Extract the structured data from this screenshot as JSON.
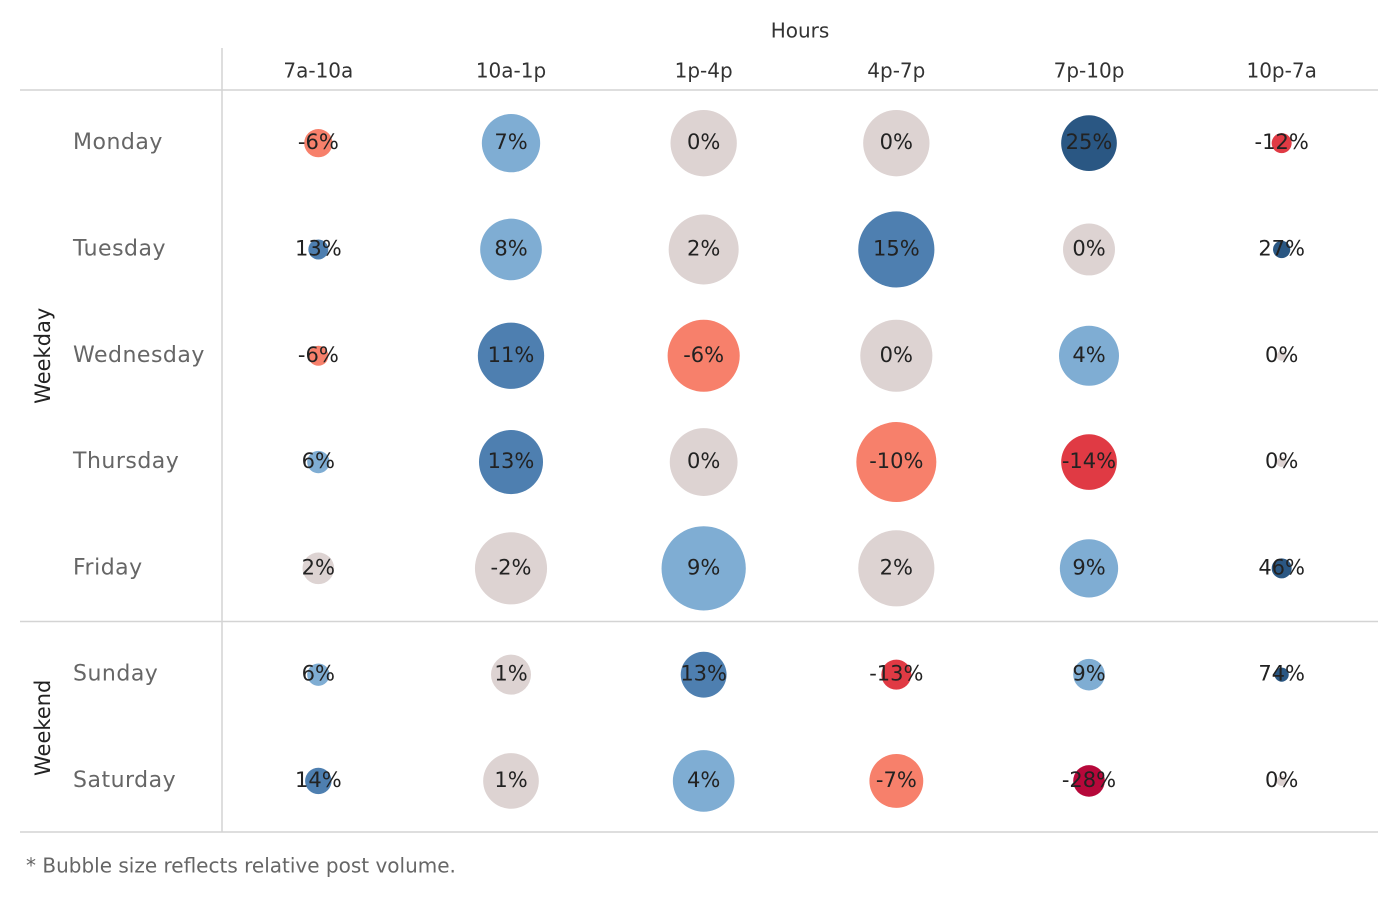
{
  "chart_data": {
    "type": "bubble-grid",
    "x_label": "Hours",
    "categories": [
      "7a-10a",
      "10a-1p",
      "1p-4p",
      "4p-7p",
      "7p-10p",
      "10p-7a"
    ],
    "groups": [
      {
        "name": "Weekday",
        "series": [
          {
            "name": "Monday",
            "values": [
              -6,
              7,
              0,
              0,
              25,
              -12
            ],
            "value_labels": [
              "-6%",
              "7%",
              "0%",
              "0%",
              "25%",
              "-12%"
            ],
            "sizes": [
              8,
              34,
              44,
              44,
              31,
              4
            ],
            "colors": [
              "#f7806b",
              "#7fadd3",
              "#ddd3d2",
              "#ddd3d2",
              "#2a5783",
              "#e03a44"
            ]
          },
          {
            "name": "Tuesday",
            "values": [
              13,
              8,
              2,
              15,
              0,
              27
            ],
            "value_labels": [
              "13%",
              "8%",
              "2%",
              "15%",
              "0%",
              "27%"
            ],
            "sizes": [
              4,
              38,
              49,
              58,
              27,
              3
            ],
            "colors": [
              "#4e7fb0",
              "#7fadd3",
              "#ddd3d2",
              "#4e7fb0",
              "#ddd3d2",
              "#2a5783"
            ]
          },
          {
            "name": "Wednesday",
            "values": [
              -6,
              11,
              -6,
              0,
              4,
              0
            ],
            "value_labels": [
              "-6%",
              "11%",
              "-6%",
              "0%",
              "4%",
              "0%"
            ],
            "sizes": [
              4,
              44,
              52,
              52,
              36,
              1
            ],
            "colors": [
              "#f7806b",
              "#4e7fb0",
              "#f7806b",
              "#ddd3d2",
              "#7fadd3",
              "#ddd3d2"
            ]
          },
          {
            "name": "Thursday",
            "values": [
              6,
              13,
              0,
              -10,
              -14,
              0
            ],
            "value_labels": [
              "6%",
              "13%",
              "0%",
              "-10%",
              "-14%",
              "0%"
            ],
            "sizes": [
              5,
              41,
              46,
              64,
              31,
              1
            ],
            "colors": [
              "#7fadd3",
              "#4e7fb0",
              "#ddd3d2",
              "#f7806b",
              "#e03a44",
              "#ddd3d2"
            ]
          },
          {
            "name": "Friday",
            "values": [
              2,
              -2,
              9,
              2,
              9,
              46
            ],
            "value_labels": [
              "2%",
              "-2%",
              "9%",
              "2%",
              "9%",
              "46%"
            ],
            "sizes": [
              10,
              52,
              71,
              58,
              34,
              4
            ],
            "colors": [
              "#ddd3d2",
              "#ddd3d2",
              "#7fadd3",
              "#ddd3d2",
              "#7fadd3",
              "#2a5783"
            ]
          }
        ]
      },
      {
        "name": "Weekend",
        "series": [
          {
            "name": "Sunday",
            "values": [
              6,
              1,
              13,
              -13,
              9,
              74
            ],
            "value_labels": [
              "6%",
              "1%",
              "13%",
              "-13%",
              "9%",
              "74%"
            ],
            "sizes": [
              5,
              16,
              21,
              9,
              10,
              2
            ],
            "colors": [
              "#7fadd3",
              "#ddd3d2",
              "#4e7fb0",
              "#e03a44",
              "#7fadd3",
              "#2a5783"
            ]
          },
          {
            "name": "Saturday",
            "values": [
              14,
              1,
              4,
              -7,
              -28,
              0
            ],
            "value_labels": [
              "14%",
              "1%",
              "4%",
              "-7%",
              "-28%",
              "0%"
            ],
            "sizes": [
              7,
              31,
              38,
              29,
              10,
              1
            ],
            "colors": [
              "#4e7fb0",
              "#ddd3d2",
              "#7fadd3",
              "#f7806b",
              "#b6083a",
              "#ddd3d2"
            ]
          }
        ]
      }
    ],
    "footnote": "* Bubble size reflects relative post volume."
  }
}
